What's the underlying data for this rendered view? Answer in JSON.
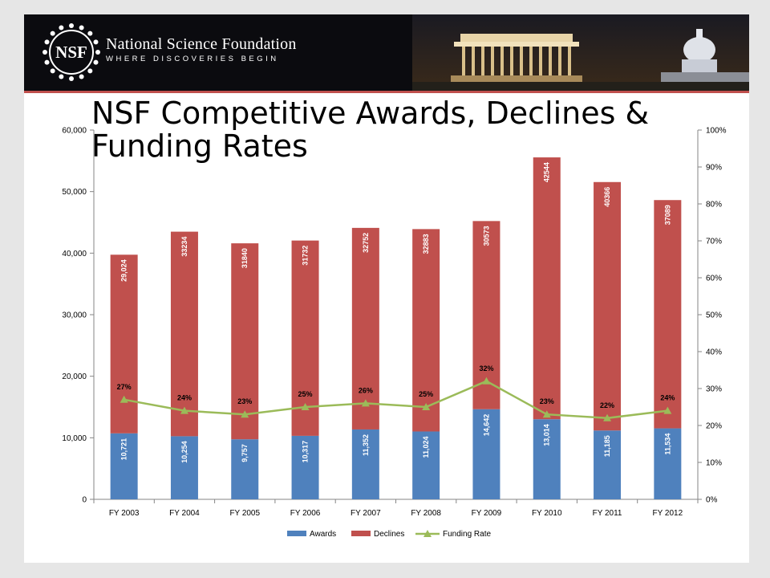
{
  "header": {
    "logo_text": "NSF",
    "org_name": "National Science Foundation",
    "tagline": "WHERE DISCOVERIES BEGIN"
  },
  "slide_title": "NSF Competitive Awards, Declines & Funding Rates",
  "colors": {
    "awards": "#4f81bd",
    "declines": "#c0504d",
    "funding_rate": "#9bbb59",
    "axis": "#868686"
  },
  "chart_data": {
    "type": "bar",
    "stacked": true,
    "title": "NSF Competitive Awards, Declines & Funding Rates",
    "categories": [
      "FY 2003",
      "FY 2004",
      "FY 2005",
      "FY 2006",
      "FY 2007",
      "FY 2008",
      "FY 2009",
      "FY 2010",
      "FY 2011",
      "FY 2012"
    ],
    "series": [
      {
        "name": "Awards",
        "type": "bar",
        "axis": "left",
        "values": [
          10721,
          10254,
          9757,
          10317,
          11352,
          11024,
          14642,
          13014,
          11185,
          11534
        ],
        "labels": [
          "10,721",
          "10,254",
          "9,757",
          "10,317",
          "11,352",
          "11,024",
          "14,642",
          "13,014",
          "11,185",
          "11,534"
        ]
      },
      {
        "name": "Declines",
        "type": "bar",
        "axis": "left",
        "values": [
          29024,
          33234,
          31840,
          31732,
          32752,
          32883,
          30573,
          42544,
          40366,
          37089
        ],
        "labels": [
          "29,024",
          "33234",
          "31840",
          "31732",
          "32752",
          "32883",
          "30573",
          "42544",
          "40366",
          "37089"
        ]
      },
      {
        "name": "Funding Rate",
        "type": "line",
        "axis": "right",
        "values": [
          27,
          24,
          23,
          25,
          26,
          25,
          32,
          23,
          22,
          24
        ],
        "labels": [
          "27%",
          "24%",
          "23%",
          "25%",
          "26%",
          "25%",
          "32%",
          "23%",
          "22%",
          "24%"
        ]
      }
    ],
    "y_left": {
      "min": 0,
      "max": 60000,
      "ticks": [
        0,
        10000,
        20000,
        30000,
        40000,
        50000,
        60000
      ],
      "tick_labels": [
        "0",
        "10,000",
        "20,000",
        "30,000",
        "40,000",
        "50,000",
        "60,000"
      ]
    },
    "y_right": {
      "min": 0,
      "max": 100,
      "ticks": [
        0,
        10,
        20,
        30,
        40,
        50,
        60,
        70,
        80,
        90,
        100
      ],
      "tick_labels": [
        "0%",
        "10%",
        "20%",
        "30%",
        "40%",
        "50%",
        "60%",
        "70%",
        "80%",
        "90%",
        "100%"
      ]
    },
    "grid": false,
    "legend_position": "bottom"
  }
}
